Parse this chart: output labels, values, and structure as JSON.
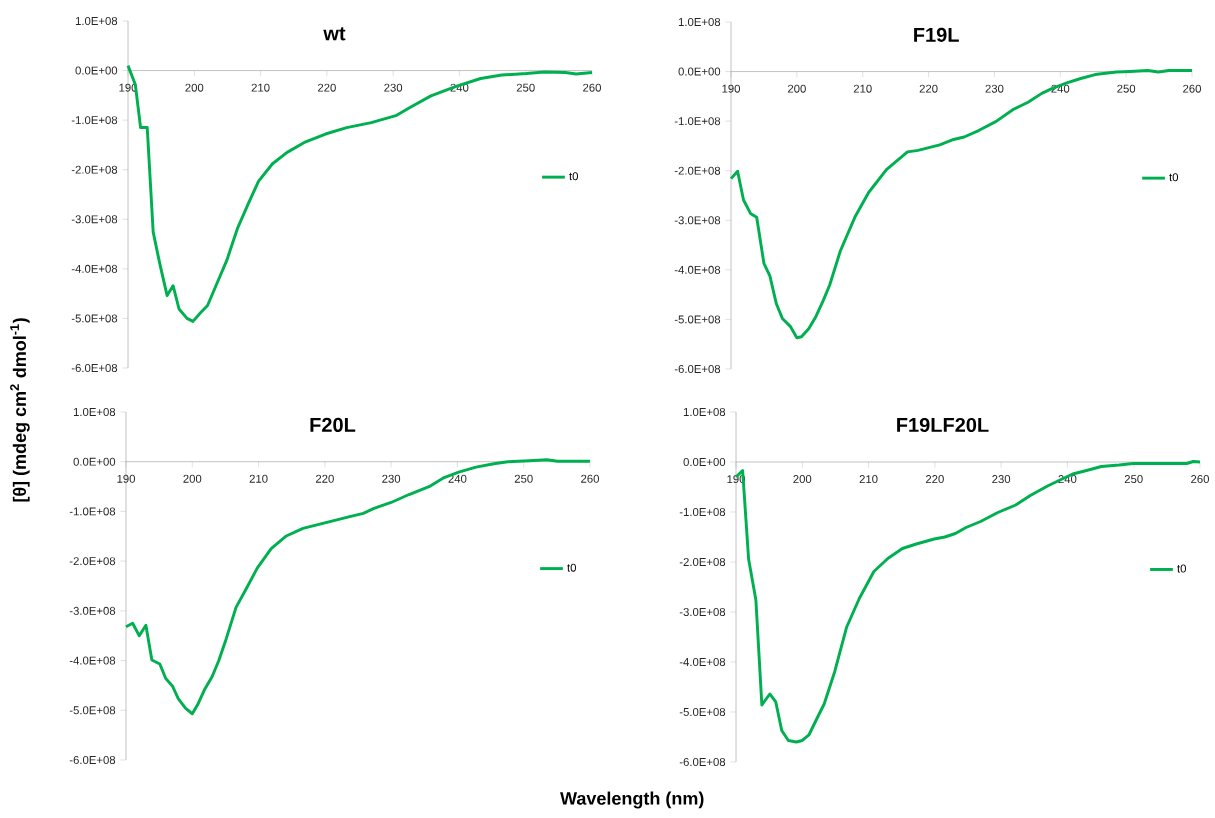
{
  "chart_data": [
    {
      "type": "line",
      "title": "wt",
      "ylabel": "[θ] (mdeg cm$^{2}$ dmol$^{-1}$)",
      "legend": "right",
      "xlim": [
        190,
        260
      ],
      "ylim": [
        -600000000,
        100000000
      ],
      "xticks": [
        190,
        200,
        210,
        220,
        230,
        240,
        250,
        260
      ],
      "yticks": [
        {
          "value": 100000000,
          "label": "1.0E+08"
        },
        {
          "value": 0,
          "label": "0.0E+00"
        },
        {
          "value": -100000000,
          "label": "-1.0E+08"
        },
        {
          "value": -200000000,
          "label": "-2.0E+08"
        },
        {
          "value": -300000000,
          "label": "-3.0E+08"
        },
        {
          "value": -400000000,
          "label": "-4.0E+08"
        },
        {
          "value": -500000000,
          "label": "-5.0E+08"
        },
        {
          "value": -600000000,
          "label": "-6.0E+08"
        }
      ],
      "series": [
        {
          "name": "t0",
          "color": "#00b050",
          "x": [
            190,
            191.1,
            191.9,
            192.9,
            193.8,
            194.8,
            195.9,
            196.8,
            197.7,
            198.9,
            199.8,
            200.9,
            202,
            203.3,
            204.9,
            206.5,
            208.1,
            209.7,
            211.8,
            214,
            216.6,
            219.8,
            223,
            226.7,
            230.4,
            232.6,
            235.7,
            239.5,
            243.2,
            246.4,
            250.1,
            252.8,
            256,
            257.6,
            260
          ],
          "values": [
            10000000,
            -28000000,
            -115000000,
            -115000000,
            -326000000,
            -390000000,
            -454000000,
            -434000000,
            -481000000,
            -500000000,
            -506000000,
            -489000000,
            -474000000,
            -433000000,
            -383000000,
            -319000000,
            -270000000,
            -223000000,
            -188000000,
            -165000000,
            -145000000,
            -128000000,
            -115000000,
            -105000000,
            -91000000,
            -74000000,
            -51000000,
            -32000000,
            -16000000,
            -9000000,
            -6000000,
            -3000000,
            -4000000,
            -7000000,
            -4000000
          ]
        }
      ]
    },
    {
      "type": "line",
      "title": "F19L",
      "legend": "right",
      "xlim": [
        190,
        260
      ],
      "ylim": [
        -600000000,
        100000000
      ],
      "xticks": [
        190,
        200,
        210,
        220,
        230,
        240,
        250,
        260
      ],
      "yticks": [
        {
          "value": 100000000,
          "label": "1.0E+08"
        },
        {
          "value": 0,
          "label": "0.0E+00"
        },
        {
          "value": -100000000,
          "label": "-1.0E+08"
        },
        {
          "value": -200000000,
          "label": "-2.0E+08"
        },
        {
          "value": -300000000,
          "label": "-3.0E+08"
        },
        {
          "value": -400000000,
          "label": "-4.0E+08"
        },
        {
          "value": -500000000,
          "label": "-5.0E+08"
        },
        {
          "value": -600000000,
          "label": "-6.0E+08"
        }
      ],
      "series": [
        {
          "name": "t0",
          "color": "#00b050",
          "x": [
            190,
            191,
            191.9,
            193,
            193.9,
            195,
            195.9,
            196.9,
            197.8,
            199,
            200,
            200.7,
            201.8,
            202.9,
            204,
            205,
            206.6,
            208.8,
            210.9,
            213.6,
            216.8,
            218.4,
            221.7,
            223.8,
            225.4,
            227.6,
            230.2,
            232.9,
            235.1,
            237.2,
            238.8,
            241,
            243.1,
            245.3,
            248.5,
            250.6,
            253.3,
            254.9,
            256.5,
            260
          ],
          "values": [
            -216000000,
            -201000000,
            -259000000,
            -287000000,
            -294000000,
            -387000000,
            -412000000,
            -469000000,
            -498000000,
            -514000000,
            -537000000,
            -535000000,
            -519000000,
            -494000000,
            -462000000,
            -430000000,
            -362000000,
            -294000000,
            -244000000,
            -198000000,
            -162000000,
            -159000000,
            -148000000,
            -137000000,
            -132000000,
            -119000000,
            -101000000,
            -76000000,
            -62000000,
            -44000000,
            -34000000,
            -23000000,
            -14000000,
            -6000000,
            -1000000,
            0,
            2000000,
            -1000000,
            2000000,
            2000000
          ]
        }
      ]
    },
    {
      "type": "line",
      "title": "F20L",
      "xlabel": "Wavelength (nm)",
      "legend": "right",
      "xlim": [
        190,
        260
      ],
      "ylim": [
        -600000000,
        100000000
      ],
      "xticks": [
        190,
        200,
        210,
        220,
        230,
        240,
        250,
        260
      ],
      "yticks": [
        {
          "value": 100000000,
          "label": "1.0E+08"
        },
        {
          "value": 0,
          "label": "0.0E+00"
        },
        {
          "value": -100000000,
          "label": "-1.0E+08"
        },
        {
          "value": -200000000,
          "label": "-2.0E+08"
        },
        {
          "value": -300000000,
          "label": "-3.0E+08"
        },
        {
          "value": -400000000,
          "label": "-4.0E+08"
        },
        {
          "value": -500000000,
          "label": "-5.0E+08"
        },
        {
          "value": -600000000,
          "label": "-6.0E+08"
        }
      ],
      "series": [
        {
          "name": "t0",
          "color": "#00b050",
          "x": [
            190,
            191,
            192,
            193,
            193.9,
            195.1,
            196,
            197,
            197.9,
            199,
            200,
            200.8,
            201.9,
            203,
            204,
            205.1,
            206.6,
            208.2,
            209.8,
            211.9,
            214.1,
            216.7,
            219.4,
            221.5,
            223.6,
            225.8,
            227.4,
            230,
            232.7,
            235.9,
            238,
            240.2,
            242.8,
            245.5,
            247.6,
            250.8,
            253.5,
            255.1,
            260
          ],
          "values": [
            -332000000,
            -325000000,
            -350000000,
            -329000000,
            -399000000,
            -407000000,
            -436000000,
            -451000000,
            -477000000,
            -496000000,
            -507000000,
            -489000000,
            -457000000,
            -432000000,
            -400000000,
            -357000000,
            -293000000,
            -254000000,
            -214000000,
            -175000000,
            -150000000,
            -134000000,
            -125000000,
            -118000000,
            -111000000,
            -104000000,
            -94000000,
            -82000000,
            -66000000,
            -49000000,
            -32000000,
            -21000000,
            -11000000,
            -4000000,
            0,
            2000000,
            4000000,
            1000000,
            1000000
          ]
        }
      ]
    },
    {
      "type": "line",
      "title": "F19LF20L",
      "legend": "right",
      "xlim": [
        190,
        260
      ],
      "ylim": [
        -600000000,
        100000000
      ],
      "xticks": [
        190,
        200,
        210,
        220,
        230,
        240,
        250,
        260
      ],
      "yticks": [
        {
          "value": 100000000,
          "label": "1.0E+08"
        },
        {
          "value": 0,
          "label": "0.0E+00"
        },
        {
          "value": -100000000,
          "label": "-1.0E+08"
        },
        {
          "value": -200000000,
          "label": "-2.0E+08"
        },
        {
          "value": -300000000,
          "label": "-3.0E+08"
        },
        {
          "value": -400000000,
          "label": "-4.0E+08"
        },
        {
          "value": -500000000,
          "label": "-5.0E+08"
        },
        {
          "value": -600000000,
          "label": "-6.0E+08"
        }
      ],
      "series": [
        {
          "name": "t0",
          "color": "#00b050",
          "x": [
            190,
            191,
            191.9,
            193,
            193.9,
            195.1,
            196,
            196.9,
            197.9,
            199.1,
            200,
            201,
            202.1,
            203.3,
            204.9,
            206.7,
            208.6,
            210.8,
            212.9,
            215.1,
            217.2,
            219.9,
            221.5,
            223.1,
            224.7,
            226.9,
            229.5,
            232.2,
            234.4,
            237,
            239.2,
            240.8,
            242.9,
            245.1,
            247.8,
            249.9,
            258,
            259,
            260
          ],
          "values": [
            -30000000,
            -17000000,
            -194000000,
            -276000000,
            -486000000,
            -464000000,
            -480000000,
            -537000000,
            -557000000,
            -560000000,
            -557000000,
            -546000000,
            -516000000,
            -484000000,
            -419000000,
            -330000000,
            -273000000,
            -219000000,
            -193000000,
            -173000000,
            -164000000,
            -154000000,
            -150000000,
            -143000000,
            -131000000,
            -119000000,
            -101000000,
            -86000000,
            -67000000,
            -48000000,
            -34000000,
            -24000000,
            -17000000,
            -9000000,
            -6000000,
            -3000000,
            -3000000,
            1000000,
            0
          ]
        }
      ]
    }
  ]
}
